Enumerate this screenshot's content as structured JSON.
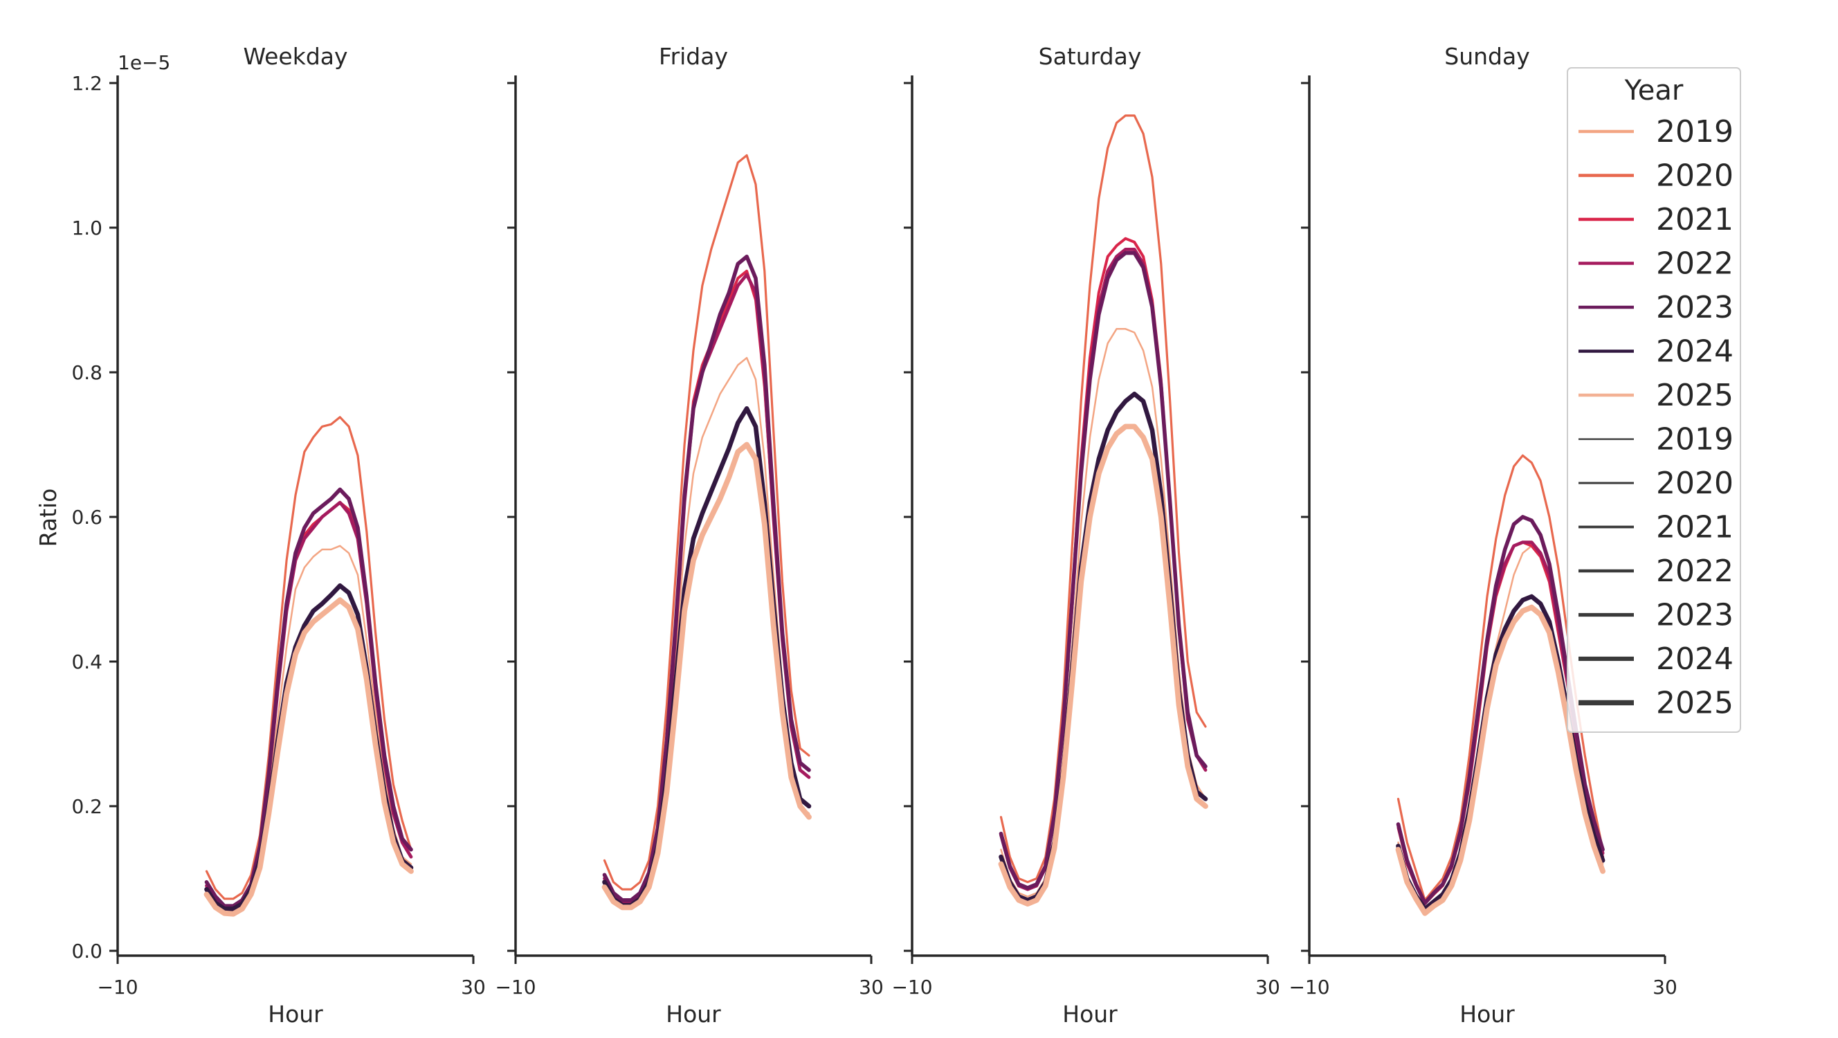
{
  "chart_data": [
    {
      "type": "line",
      "title": "Weekday",
      "xlabel": "Hour",
      "ylabel": "Ratio",
      "y_offset_label": "1e−5",
      "xlim": [
        -10,
        30
      ],
      "ylim": [
        0,
        1.2
      ],
      "xticks": [
        "−10",
        "30"
      ],
      "yticks": [
        "0.0",
        "0.2",
        "0.4",
        "0.6",
        "0.8",
        "1.0",
        "1.2"
      ],
      "x": [
        0,
        1,
        2,
        3,
        4,
        5,
        6,
        7,
        8,
        9,
        10,
        11,
        12,
        13,
        14,
        15,
        16,
        17,
        18,
        19,
        20,
        21,
        22,
        23
      ],
      "series": [
        {
          "name": "2019",
          "values": [
            0.08,
            0.06,
            0.053,
            0.055,
            0.065,
            0.09,
            0.14,
            0.22,
            0.32,
            0.42,
            0.5,
            0.53,
            0.545,
            0.555,
            0.555,
            0.56,
            0.55,
            0.52,
            0.43,
            0.33,
            0.24,
            0.17,
            0.13,
            0.12
          ]
        },
        {
          "name": "2020",
          "values": [
            0.11,
            0.085,
            0.072,
            0.072,
            0.08,
            0.105,
            0.16,
            0.27,
            0.41,
            0.54,
            0.63,
            0.69,
            0.71,
            0.725,
            0.728,
            0.738,
            0.725,
            0.685,
            0.58,
            0.44,
            0.32,
            0.23,
            0.18,
            0.14
          ]
        },
        {
          "name": "2021",
          "values": [
            0.09,
            0.07,
            0.06,
            0.06,
            0.068,
            0.09,
            0.14,
            0.24,
            0.36,
            0.47,
            0.55,
            0.575,
            0.59,
            0.6,
            0.61,
            0.62,
            0.61,
            0.57,
            0.48,
            0.36,
            0.26,
            0.19,
            0.15,
            0.13
          ]
        },
        {
          "name": "2022",
          "values": [
            0.09,
            0.07,
            0.06,
            0.06,
            0.068,
            0.09,
            0.14,
            0.24,
            0.36,
            0.47,
            0.54,
            0.57,
            0.585,
            0.6,
            0.61,
            0.62,
            0.605,
            0.57,
            0.48,
            0.36,
            0.26,
            0.19,
            0.15,
            0.13
          ]
        },
        {
          "name": "2023",
          "values": [
            0.095,
            0.075,
            0.062,
            0.062,
            0.07,
            0.092,
            0.145,
            0.245,
            0.37,
            0.48,
            0.55,
            0.585,
            0.605,
            0.615,
            0.625,
            0.638,
            0.625,
            0.585,
            0.49,
            0.37,
            0.27,
            0.2,
            0.155,
            0.14
          ]
        },
        {
          "name": "2024",
          "values": [
            0.085,
            0.066,
            0.058,
            0.058,
            0.065,
            0.085,
            0.125,
            0.2,
            0.29,
            0.37,
            0.42,
            0.45,
            0.47,
            0.48,
            0.492,
            0.505,
            0.495,
            0.465,
            0.39,
            0.3,
            0.22,
            0.16,
            0.125,
            0.115
          ]
        },
        {
          "name": "2025",
          "values": [
            0.078,
            0.06,
            0.052,
            0.051,
            0.058,
            0.078,
            0.115,
            0.19,
            0.275,
            0.355,
            0.41,
            0.44,
            0.455,
            0.465,
            0.475,
            0.485,
            0.475,
            0.445,
            0.375,
            0.285,
            0.205,
            0.15,
            0.12,
            0.11
          ]
        }
      ]
    },
    {
      "type": "line",
      "title": "Friday",
      "xlabel": "Hour",
      "ylabel": "",
      "xlim": [
        -10,
        30
      ],
      "ylim": [
        0,
        1.2
      ],
      "xticks": [
        "−10",
        "30"
      ],
      "x": [
        0,
        1,
        2,
        3,
        4,
        5,
        6,
        7,
        8,
        9,
        10,
        11,
        12,
        13,
        14,
        15,
        16,
        17,
        18,
        19,
        20,
        21,
        22,
        23
      ],
      "series": [
        {
          "name": "2019",
          "values": [
            0.1,
            0.075,
            0.065,
            0.065,
            0.075,
            0.1,
            0.16,
            0.26,
            0.41,
            0.56,
            0.66,
            0.71,
            0.74,
            0.77,
            0.79,
            0.81,
            0.82,
            0.79,
            0.68,
            0.52,
            0.37,
            0.26,
            0.2,
            0.19
          ]
        },
        {
          "name": "2020",
          "values": [
            0.125,
            0.095,
            0.085,
            0.085,
            0.095,
            0.125,
            0.2,
            0.34,
            0.52,
            0.7,
            0.83,
            0.92,
            0.97,
            1.01,
            1.05,
            1.09,
            1.1,
            1.06,
            0.94,
            0.72,
            0.51,
            0.36,
            0.28,
            0.27
          ]
        },
        {
          "name": "2021",
          "values": [
            0.1,
            0.078,
            0.068,
            0.068,
            0.078,
            0.105,
            0.165,
            0.28,
            0.44,
            0.62,
            0.76,
            0.81,
            0.84,
            0.87,
            0.9,
            0.93,
            0.94,
            0.9,
            0.78,
            0.6,
            0.43,
            0.31,
            0.25,
            0.24
          ]
        },
        {
          "name": "2022",
          "values": [
            0.1,
            0.078,
            0.068,
            0.068,
            0.078,
            0.105,
            0.165,
            0.28,
            0.44,
            0.62,
            0.75,
            0.8,
            0.83,
            0.86,
            0.89,
            0.92,
            0.935,
            0.91,
            0.79,
            0.6,
            0.43,
            0.31,
            0.25,
            0.24
          ]
        },
        {
          "name": "2023",
          "values": [
            0.105,
            0.08,
            0.07,
            0.07,
            0.08,
            0.108,
            0.17,
            0.29,
            0.45,
            0.63,
            0.75,
            0.8,
            0.84,
            0.88,
            0.91,
            0.95,
            0.96,
            0.93,
            0.81,
            0.62,
            0.44,
            0.32,
            0.26,
            0.25
          ]
        },
        {
          "name": "2024",
          "values": [
            0.095,
            0.072,
            0.063,
            0.063,
            0.072,
            0.095,
            0.145,
            0.24,
            0.37,
            0.5,
            0.57,
            0.605,
            0.635,
            0.665,
            0.695,
            0.73,
            0.75,
            0.725,
            0.62,
            0.48,
            0.35,
            0.26,
            0.21,
            0.2
          ]
        },
        {
          "name": "2025",
          "values": [
            0.088,
            0.068,
            0.06,
            0.06,
            0.068,
            0.088,
            0.135,
            0.22,
            0.34,
            0.47,
            0.54,
            0.575,
            0.6,
            0.625,
            0.655,
            0.69,
            0.7,
            0.68,
            0.59,
            0.45,
            0.33,
            0.24,
            0.2,
            0.185
          ]
        }
      ]
    },
    {
      "type": "line",
      "title": "Saturday",
      "xlabel": "Hour",
      "ylabel": "",
      "xlim": [
        -10,
        30
      ],
      "ylim": [
        0,
        1.2
      ],
      "xticks": [
        "−10",
        "30"
      ],
      "x": [
        0,
        1,
        2,
        3,
        4,
        5,
        6,
        7,
        8,
        9,
        10,
        11,
        12,
        13,
        14,
        15,
        16,
        17,
        18,
        19,
        20,
        21,
        22,
        23
      ],
      "series": [
        {
          "name": "2019",
          "values": [
            0.14,
            0.1,
            0.08,
            0.075,
            0.08,
            0.1,
            0.16,
            0.27,
            0.42,
            0.59,
            0.71,
            0.79,
            0.84,
            0.86,
            0.86,
            0.855,
            0.83,
            0.78,
            0.68,
            0.54,
            0.39,
            0.28,
            0.23,
            0.21
          ]
        },
        {
          "name": "2020",
          "values": [
            0.185,
            0.13,
            0.1,
            0.095,
            0.1,
            0.13,
            0.21,
            0.35,
            0.56,
            0.76,
            0.92,
            1.04,
            1.11,
            1.145,
            1.155,
            1.155,
            1.13,
            1.07,
            0.95,
            0.76,
            0.55,
            0.4,
            0.33,
            0.31
          ]
        },
        {
          "name": "2021",
          "values": [
            0.16,
            0.115,
            0.09,
            0.085,
            0.09,
            0.115,
            0.185,
            0.31,
            0.49,
            0.68,
            0.82,
            0.91,
            0.96,
            0.975,
            0.985,
            0.98,
            0.96,
            0.9,
            0.79,
            0.62,
            0.45,
            0.32,
            0.27,
            0.25
          ]
        },
        {
          "name": "2022",
          "values": [
            0.16,
            0.115,
            0.09,
            0.085,
            0.09,
            0.115,
            0.185,
            0.31,
            0.48,
            0.67,
            0.8,
            0.89,
            0.94,
            0.96,
            0.97,
            0.97,
            0.95,
            0.89,
            0.78,
            0.62,
            0.45,
            0.32,
            0.27,
            0.25
          ]
        },
        {
          "name": "2023",
          "values": [
            0.162,
            0.117,
            0.092,
            0.087,
            0.092,
            0.117,
            0.188,
            0.315,
            0.485,
            0.66,
            0.79,
            0.88,
            0.93,
            0.955,
            0.965,
            0.965,
            0.945,
            0.89,
            0.78,
            0.62,
            0.45,
            0.33,
            0.27,
            0.255
          ]
        },
        {
          "name": "2024",
          "values": [
            0.13,
            0.095,
            0.075,
            0.07,
            0.075,
            0.095,
            0.15,
            0.25,
            0.39,
            0.53,
            0.62,
            0.68,
            0.72,
            0.745,
            0.76,
            0.77,
            0.76,
            0.72,
            0.63,
            0.5,
            0.36,
            0.27,
            0.22,
            0.21
          ]
        },
        {
          "name": "2025",
          "values": [
            0.12,
            0.088,
            0.07,
            0.065,
            0.07,
            0.09,
            0.142,
            0.24,
            0.37,
            0.51,
            0.6,
            0.66,
            0.695,
            0.715,
            0.725,
            0.725,
            0.71,
            0.68,
            0.6,
            0.475,
            0.34,
            0.255,
            0.21,
            0.2
          ]
        }
      ]
    },
    {
      "type": "line",
      "title": "Sunday",
      "xlabel": "Hour",
      "ylabel": "",
      "xlim": [
        -10,
        30
      ],
      "ylim": [
        0,
        1.2
      ],
      "xticks": [
        "−10",
        "30"
      ],
      "x": [
        0,
        1,
        2,
        3,
        4,
        5,
        6,
        7,
        8,
        9,
        10,
        11,
        12,
        13,
        14,
        15,
        16,
        17,
        18,
        19,
        20,
        21,
        22,
        23
      ],
      "series": [
        {
          "name": "2019",
          "values": [
            0.15,
            0.1,
            0.08,
            0.06,
            0.07,
            0.08,
            0.1,
            0.14,
            0.2,
            0.28,
            0.36,
            0.42,
            0.47,
            0.52,
            0.55,
            0.56,
            0.55,
            0.52,
            0.46,
            0.38,
            0.3,
            0.23,
            0.17,
            0.12
          ]
        },
        {
          "name": "2020",
          "values": [
            0.21,
            0.15,
            0.11,
            0.07,
            0.085,
            0.1,
            0.13,
            0.18,
            0.27,
            0.38,
            0.49,
            0.57,
            0.63,
            0.67,
            0.685,
            0.675,
            0.65,
            0.6,
            0.53,
            0.44,
            0.35,
            0.27,
            0.2,
            0.14
          ]
        },
        {
          "name": "2021",
          "values": [
            0.17,
            0.12,
            0.09,
            0.065,
            0.078,
            0.09,
            0.115,
            0.16,
            0.23,
            0.32,
            0.42,
            0.49,
            0.53,
            0.56,
            0.565,
            0.56,
            0.545,
            0.51,
            0.44,
            0.37,
            0.29,
            0.22,
            0.17,
            0.13
          ]
        },
        {
          "name": "2022",
          "values": [
            0.175,
            0.125,
            0.092,
            0.066,
            0.08,
            0.092,
            0.118,
            0.165,
            0.235,
            0.33,
            0.425,
            0.495,
            0.535,
            0.56,
            0.565,
            0.565,
            0.55,
            0.52,
            0.45,
            0.375,
            0.295,
            0.225,
            0.175,
            0.135
          ]
        },
        {
          "name": "2023",
          "values": [
            0.175,
            0.125,
            0.092,
            0.066,
            0.08,
            0.092,
            0.118,
            0.165,
            0.24,
            0.335,
            0.43,
            0.505,
            0.555,
            0.59,
            0.6,
            0.595,
            0.575,
            0.535,
            0.465,
            0.385,
            0.305,
            0.23,
            0.18,
            0.14
          ]
        },
        {
          "name": "2024",
          "values": [
            0.145,
            0.1,
            0.076,
            0.058,
            0.068,
            0.078,
            0.098,
            0.135,
            0.195,
            0.27,
            0.35,
            0.41,
            0.445,
            0.47,
            0.485,
            0.49,
            0.48,
            0.455,
            0.4,
            0.335,
            0.265,
            0.205,
            0.16,
            0.125
          ]
        },
        {
          "name": "2025",
          "values": [
            0.14,
            0.095,
            0.072,
            0.052,
            0.062,
            0.07,
            0.09,
            0.125,
            0.18,
            0.255,
            0.335,
            0.395,
            0.43,
            0.455,
            0.47,
            0.475,
            0.465,
            0.44,
            0.385,
            0.32,
            0.25,
            0.19,
            0.145,
            0.11
          ]
        }
      ]
    }
  ],
  "legend": {
    "title": "Year",
    "placement": "top-right",
    "hue_entries": [
      {
        "label": "2019",
        "color": "#f3a583"
      },
      {
        "label": "2020",
        "color": "#e8684e"
      },
      {
        "label": "2021",
        "color": "#d9254a"
      },
      {
        "label": "2022",
        "color": "#a51b5e"
      },
      {
        "label": "2023",
        "color": "#6b1b5c"
      },
      {
        "label": "2024",
        "color": "#311840"
      },
      {
        "label": "2025",
        "color": "#f3b194"
      }
    ],
    "size_entries": [
      {
        "label": "2019",
        "color": "#3a3a3a"
      },
      {
        "label": "2020",
        "color": "#3a3a3a"
      },
      {
        "label": "2021",
        "color": "#3a3a3a"
      },
      {
        "label": "2022",
        "color": "#3a3a3a"
      },
      {
        "label": "2023",
        "color": "#3a3a3a"
      },
      {
        "label": "2024",
        "color": "#3a3a3a"
      },
      {
        "label": "2025",
        "color": "#3a3a3a"
      }
    ]
  }
}
